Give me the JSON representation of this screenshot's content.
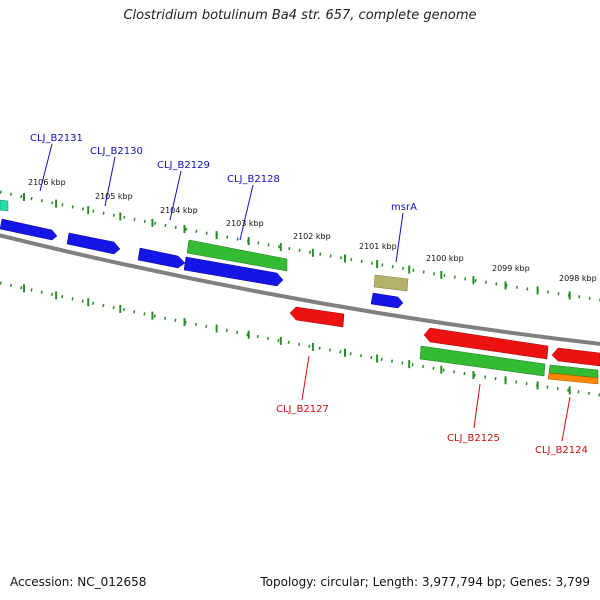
{
  "title": "Clostridium botulinum Ba4 str. 657, complete genome",
  "footer": {
    "accession": "Accession: NC_012658",
    "summary": "Topology: circular; Length: 3,977,794 bp; Genes: 3,799"
  },
  "colors": {
    "backbone": "#808080",
    "tick": "#2a8a2a",
    "forward_label": "#1010c0",
    "reverse_label": "#d01010",
    "blue": "#1515e6",
    "green": "#33bb33",
    "red": "#ee1111",
    "olive": "#b5b06a",
    "orange": "#ff8800",
    "teal": "#22ddaa"
  },
  "tick_labels": [
    "2106 kbp",
    "2105 kbp",
    "2104 kbp",
    "2103 kbp",
    "2102 kbp",
    "2101 kbp",
    "2100 kbp",
    "2099 kbp",
    "2098 kbp"
  ],
  "forward_labels": [
    "CLJ_B2131",
    "CLJ_B2130",
    "CLJ_B2129",
    "CLJ_B2128",
    "msrA"
  ],
  "reverse_labels": [
    "CLJ_B2127",
    "CLJ_B2125",
    "CLJ_B2124"
  ]
}
